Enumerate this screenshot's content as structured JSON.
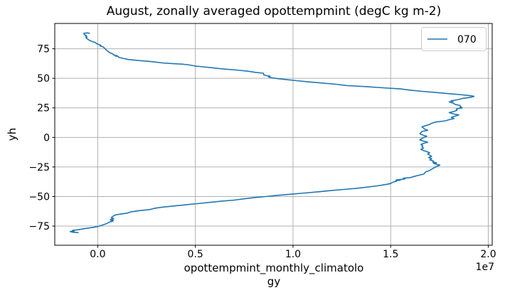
{
  "chart_data": {
    "type": "line",
    "title": "August, zonally averaged opottempmint (degC kg m-2)",
    "xlabel": "opottempmint_monthly_climatology",
    "xlabel_lines": [
      "opottempmint_monthly_climatolo",
      "gy"
    ],
    "ylabel": "yh",
    "x_offset_text": "1e7",
    "x_unit_scale": 10000000,
    "xlim": [
      -0.22,
      2.02
    ],
    "ylim": [
      -91.2,
      96.4
    ],
    "grid": true,
    "legend_position": "upper right",
    "x_ticks": {
      "values": [
        0.0,
        0.5,
        1.0,
        1.5,
        2.0
      ],
      "labels": [
        "0.0",
        "0.5",
        "1.0",
        "1.5",
        "2.0"
      ]
    },
    "y_ticks": {
      "values": [
        75,
        50,
        25,
        0,
        -25,
        -50,
        -75
      ],
      "labels": [
        "75",
        "50",
        "25",
        "0",
        "−25",
        "−50",
        "−75"
      ]
    },
    "colors": {
      "line": "#1f77b4",
      "grid": "#b0b0b0",
      "spine": "#000000",
      "legend_edge": "#cccccc"
    },
    "series": [
      {
        "name": "070",
        "color": "#1f77b4",
        "points_format": "[x_in_1e7, yh]",
        "points": [
          [
            -0.1,
            -80.5
          ],
          [
            -0.128,
            -80.2
          ],
          [
            -0.141,
            -79.6
          ],
          [
            -0.12,
            -79.1
          ],
          [
            -0.13,
            -78.7
          ],
          [
            -0.1,
            -78.1
          ],
          [
            -0.07,
            -77.2
          ],
          [
            -0.031,
            -76.3
          ],
          [
            0.0,
            -75.4
          ],
          [
            0.012,
            -74.7
          ],
          [
            0.035,
            -73.5
          ],
          [
            0.048,
            -72.7
          ],
          [
            0.062,
            -71.5
          ],
          [
            0.079,
            -70.7
          ],
          [
            0.068,
            -70.2
          ],
          [
            0.079,
            -69.9
          ],
          [
            0.065,
            -69.4
          ],
          [
            0.082,
            -68.7
          ],
          [
            0.07,
            -68.0
          ],
          [
            0.073,
            -67.3
          ],
          [
            0.08,
            -66.6
          ],
          [
            0.085,
            -65.8
          ],
          [
            0.11,
            -65.0
          ],
          [
            0.15,
            -64.0
          ],
          [
            0.17,
            -63.0
          ],
          [
            0.21,
            -62.0
          ],
          [
            0.267,
            -61.0
          ],
          [
            0.29,
            -60.0
          ],
          [
            0.33,
            -59.0
          ],
          [
            0.39,
            -58.0
          ],
          [
            0.45,
            -57.0
          ],
          [
            0.51,
            -56.0
          ],
          [
            0.57,
            -55.0
          ],
          [
            0.63,
            -54.0
          ],
          [
            0.7,
            -53.0
          ],
          [
            0.745,
            -52.0
          ],
          [
            0.8,
            -51.0
          ],
          [
            0.86,
            -50.0
          ],
          [
            0.92,
            -49.0
          ],
          [
            0.99,
            -48.0
          ],
          [
            1.06,
            -47.0
          ],
          [
            1.13,
            -46.0
          ],
          [
            1.19,
            -45.0
          ],
          [
            1.26,
            -44.0
          ],
          [
            1.33,
            -43.0
          ],
          [
            1.38,
            -42.0
          ],
          [
            1.43,
            -41.0
          ],
          [
            1.47,
            -40.0
          ],
          [
            1.5,
            -39.0
          ],
          [
            1.51,
            -38.0
          ],
          [
            1.53,
            -37.0
          ],
          [
            1.525,
            -36.6
          ],
          [
            1.55,
            -36.2
          ],
          [
            1.53,
            -35.9
          ],
          [
            1.56,
            -35.4
          ],
          [
            1.575,
            -35.0
          ],
          [
            1.565,
            -34.5
          ],
          [
            1.6,
            -34.0
          ],
          [
            1.62,
            -33.0
          ],
          [
            1.645,
            -32.0
          ],
          [
            1.67,
            -31.0
          ],
          [
            1.675,
            -30.0
          ],
          [
            1.68,
            -29.0
          ],
          [
            1.7,
            -28.0
          ],
          [
            1.709,
            -27.0
          ],
          [
            1.72,
            -26.0
          ],
          [
            1.73,
            -25.0
          ],
          [
            1.745,
            -24.0
          ],
          [
            1.752,
            -23.4
          ],
          [
            1.74,
            -23.0
          ],
          [
            1.72,
            -22.0
          ],
          [
            1.735,
            -21.5
          ],
          [
            1.715,
            -21.0
          ],
          [
            1.72,
            -20.0
          ],
          [
            1.7,
            -19.0
          ],
          [
            1.71,
            -18.0
          ],
          [
            1.695,
            -17.0
          ],
          [
            1.71,
            -16.0
          ],
          [
            1.7,
            -15.0
          ],
          [
            1.69,
            -14.0
          ],
          [
            1.7,
            -13.0
          ],
          [
            1.685,
            -12.0
          ],
          [
            1.667,
            -11.0
          ],
          [
            1.655,
            -10.0
          ],
          [
            1.668,
            -9.0
          ],
          [
            1.66,
            -8.0
          ],
          [
            1.665,
            -7.0
          ],
          [
            1.655,
            -6.0
          ],
          [
            1.67,
            -5.0
          ],
          [
            1.69,
            -4.0
          ],
          [
            1.665,
            -3.0
          ],
          [
            1.649,
            -2.0
          ],
          [
            1.66,
            -1.0
          ],
          [
            1.67,
            0.0
          ],
          [
            1.685,
            1.0
          ],
          [
            1.665,
            2.0
          ],
          [
            1.65,
            3.0
          ],
          [
            1.655,
            4.0
          ],
          [
            1.66,
            5.0
          ],
          [
            1.69,
            6.0
          ],
          [
            1.675,
            7.0
          ],
          [
            1.667,
            8.0
          ],
          [
            1.66,
            9.0
          ],
          [
            1.68,
            10.0
          ],
          [
            1.7,
            11.0
          ],
          [
            1.71,
            12.0
          ],
          [
            1.73,
            13.0
          ],
          [
            1.78,
            14.0
          ],
          [
            1.8,
            15.0
          ],
          [
            1.825,
            16.0
          ],
          [
            1.81,
            17.0
          ],
          [
            1.83,
            18.0
          ],
          [
            1.849,
            19.0
          ],
          [
            1.82,
            20.0
          ],
          [
            1.8,
            21.0
          ],
          [
            1.825,
            22.0
          ],
          [
            1.84,
            23.0
          ],
          [
            1.836,
            24.0
          ],
          [
            1.867,
            25.0
          ],
          [
            1.855,
            25.5
          ],
          [
            1.86,
            26.0
          ],
          [
            1.855,
            27.0
          ],
          [
            1.83,
            28.0
          ],
          [
            1.82,
            29.0
          ],
          [
            1.8,
            30.0
          ],
          [
            1.82,
            30.5
          ],
          [
            1.81,
            31.0
          ],
          [
            1.83,
            31.5
          ],
          [
            1.845,
            32.0
          ],
          [
            1.87,
            33.0
          ],
          [
            1.91,
            34.0
          ],
          [
            1.927,
            34.7
          ],
          [
            1.915,
            35.2
          ],
          [
            1.87,
            36.0
          ],
          [
            1.8,
            37.0
          ],
          [
            1.73,
            38.0
          ],
          [
            1.66,
            39.0
          ],
          [
            1.6,
            40.0
          ],
          [
            1.55,
            41.0
          ],
          [
            1.46,
            42.0
          ],
          [
            1.37,
            43.0
          ],
          [
            1.28,
            43.8
          ],
          [
            1.258,
            44.2
          ],
          [
            1.22,
            45.0
          ],
          [
            1.15,
            46.0
          ],
          [
            1.08,
            47.0
          ],
          [
            1.02,
            48.0
          ],
          [
            0.96,
            49.0
          ],
          [
            0.91,
            50.0
          ],
          [
            0.885,
            50.6
          ],
          [
            0.875,
            51.2
          ],
          [
            0.882,
            51.8
          ],
          [
            0.862,
            52.3
          ],
          [
            0.85,
            53.0
          ],
          [
            0.849,
            54.3
          ],
          [
            0.81,
            55.0
          ],
          [
            0.77,
            56.0
          ],
          [
            0.71,
            57.0
          ],
          [
            0.64,
            58.0
          ],
          [
            0.58,
            59.0
          ],
          [
            0.52,
            60.0
          ],
          [
            0.5,
            60.4
          ],
          [
            0.48,
            61.0
          ],
          [
            0.46,
            61.5
          ],
          [
            0.43,
            62.0
          ],
          [
            0.38,
            62.5
          ],
          [
            0.33,
            63.0
          ],
          [
            0.3,
            63.7
          ],
          [
            0.267,
            64.3
          ],
          [
            0.206,
            65.1
          ],
          [
            0.157,
            65.9
          ],
          [
            0.133,
            66.7
          ],
          [
            0.109,
            67.7
          ],
          [
            0.105,
            68.4
          ],
          [
            0.091,
            68.8
          ],
          [
            0.1,
            69.1
          ],
          [
            0.085,
            69.5
          ],
          [
            0.079,
            70.3
          ],
          [
            0.072,
            71.0
          ],
          [
            0.06,
            71.7
          ],
          [
            0.055,
            72.5
          ],
          [
            0.048,
            73.3
          ],
          [
            0.042,
            74.3
          ],
          [
            0.036,
            75.3
          ],
          [
            0.03,
            76.3
          ],
          [
            0.02,
            77.0
          ],
          [
            0.012,
            77.4
          ],
          [
            0.016,
            77.8
          ],
          [
            0.01,
            78.3
          ],
          [
            -0.006,
            79.3
          ],
          [
            -0.012,
            80.3
          ],
          [
            -0.031,
            81.3
          ],
          [
            -0.045,
            82.3
          ],
          [
            -0.052,
            83.3
          ],
          [
            -0.061,
            84.3
          ],
          [
            -0.055,
            85.0
          ],
          [
            -0.062,
            85.6
          ],
          [
            -0.058,
            86.1
          ],
          [
            -0.065,
            86.6
          ],
          [
            -0.068,
            87.2
          ],
          [
            -0.072,
            87.8
          ],
          [
            -0.065,
            88.3
          ],
          [
            -0.052,
            88.4
          ],
          [
            -0.043,
            88.1
          ]
        ]
      }
    ]
  }
}
